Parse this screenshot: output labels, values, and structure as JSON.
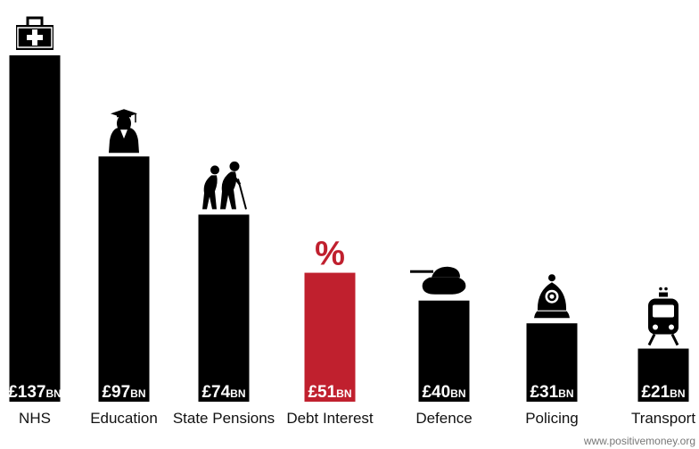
{
  "chart_data": {
    "type": "bar",
    "categories": [
      "NHS",
      "Education",
      "State Pensions",
      "Debt Interest",
      "Defence",
      "Policing",
      "Transport"
    ],
    "values": [
      137,
      97,
      74,
      51,
      40,
      31,
      21
    ],
    "value_labels": [
      {
        "main": "£137",
        "unit": "BN"
      },
      {
        "main": "£97",
        "unit": "BN"
      },
      {
        "main": "£74",
        "unit": "BN"
      },
      {
        "main": "£51",
        "unit": "BN"
      },
      {
        "main": "£40",
        "unit": "BN"
      },
      {
        "main": "£31",
        "unit": "BN"
      },
      {
        "main": "£21",
        "unit": "BN"
      }
    ],
    "icons": [
      "medical-bag-icon",
      "graduate-icon",
      "elderly-couple-icon",
      "percent-icon",
      "tank-icon",
      "police-helmet-icon",
      "train-icon"
    ],
    "icon_text": {
      "percent": "%"
    },
    "colors": [
      "#000000",
      "#000000",
      "#000000",
      "#c0202e",
      "#000000",
      "#000000",
      "#000000"
    ],
    "highlight_color": "#c0202e",
    "bar_color": "#000000",
    "ylim": [
      0,
      140
    ],
    "grid": false,
    "legend": "none",
    "title": "",
    "xlabel": "",
    "ylabel": ""
  },
  "credit": "www.positivemoney.org"
}
